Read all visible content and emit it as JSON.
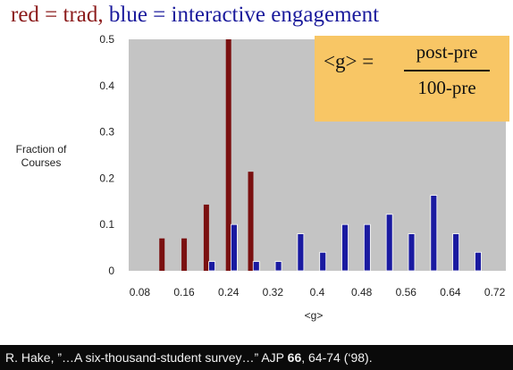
{
  "title": {
    "red_part": "red = trad,",
    "blue_part": "blue = interactive engagement"
  },
  "formula": {
    "lhs": "<g> =",
    "numerator": "post-pre",
    "denominator": "100-pre"
  },
  "footer": {
    "pre": "R. Hake, ”…A six-thousand-student survey…” AJP ",
    "bold": "66",
    "post": ", 64-74 (‘98)."
  },
  "colors": {
    "trad": "#7a1010",
    "interactive": "#1a1aa0",
    "plot_bg": "#c4c4c4",
    "formula_bg": "#f8c665"
  },
  "chart_data": {
    "type": "bar",
    "xlabel": "<g>",
    "ylabel": "Fraction of Courses",
    "xlim": [
      0.06,
      0.74
    ],
    "ylim": [
      0,
      0.5
    ],
    "x_ticks": [
      "0.08",
      "0.16",
      "0.24",
      "0.32",
      "0.4",
      "0.48",
      "0.56",
      "0.64",
      "0.72"
    ],
    "x_tick_values": [
      0.08,
      0.16,
      0.24,
      0.32,
      0.4,
      0.48,
      0.56,
      0.64,
      0.72
    ],
    "y_ticks": [
      "0",
      "0.1",
      "0.2",
      "0.3",
      "0.4",
      "0.5"
    ],
    "y_tick_values": [
      0,
      0.1,
      0.2,
      0.3,
      0.4,
      0.5
    ],
    "grid": false,
    "series": [
      {
        "key": "trad",
        "points": [
          {
            "x": 0.12,
            "y": 0.07
          },
          {
            "x": 0.16,
            "y": 0.07
          },
          {
            "x": 0.2,
            "y": 0.143
          },
          {
            "x": 0.24,
            "y": 0.5
          },
          {
            "x": 0.28,
            "y": 0.214
          }
        ]
      },
      {
        "key": "interactive",
        "points": [
          {
            "x": 0.21,
            "y": 0.02
          },
          {
            "x": 0.25,
            "y": 0.1
          },
          {
            "x": 0.29,
            "y": 0.02
          },
          {
            "x": 0.33,
            "y": 0.02
          },
          {
            "x": 0.37,
            "y": 0.08
          },
          {
            "x": 0.41,
            "y": 0.04
          },
          {
            "x": 0.45,
            "y": 0.1
          },
          {
            "x": 0.49,
            "y": 0.1
          },
          {
            "x": 0.53,
            "y": 0.122
          },
          {
            "x": 0.57,
            "y": 0.08
          },
          {
            "x": 0.61,
            "y": 0.163
          },
          {
            "x": 0.65,
            "y": 0.08
          },
          {
            "x": 0.69,
            "y": 0.04
          }
        ]
      }
    ]
  }
}
